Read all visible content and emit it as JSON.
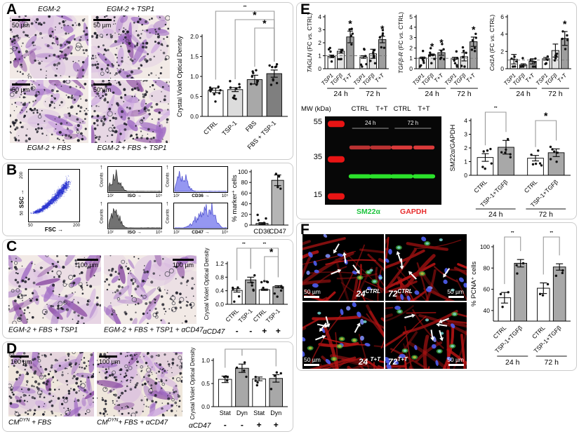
{
  "figure": {
    "bg": "#ffffff",
    "panel_border": "#cbcbcb"
  },
  "panelA": {
    "label": "A",
    "scale_label": "50 µm",
    "top_captions": [
      "EGM-2",
      "EGM-2 + TSP1"
    ],
    "bottom_captions": [
      "EGM-2 + FBS",
      "EGM-2 + FBS + TSP1"
    ]
  },
  "panelB": {
    "label": "B",
    "scatter": {
      "ylabel": "SSC",
      "xlabel": "FSC",
      "arrow_right": "→",
      "y_tick_top": "200",
      "y_tick_bottom": "50",
      "x_tick_left": "50",
      "x_tick_right": "200"
    },
    "hist_ylabel": "Counts",
    "up_arrow": "↑",
    "hist_xtick_left": "10²",
    "hist_xtick_right": "10⁵",
    "histograms": [
      {
        "xlabel": "ISO"
      },
      {
        "xlabel": "CD36"
      },
      {
        "xlabel": "ISO"
      },
      {
        "xlabel": "CD47"
      }
    ]
  },
  "panelC": {
    "label": "C",
    "scale_label": "100 µm",
    "captions": [
      {
        "pre": "EGM-2 + FBS + TSP1"
      },
      {
        "pre": "EGM-2 + FBS + TSP1 + αCD47"
      }
    ]
  },
  "panelD": {
    "label": "D",
    "scale_label": "100 µm",
    "captions": [
      {
        "pre": "CM",
        "sup": "DYN",
        "post": " + FBS"
      },
      {
        "pre": "CM",
        "sup": "DYN",
        "post": "+ FBS + αCD47"
      }
    ]
  },
  "panelE": {
    "label": "E",
    "blot": {
      "mw_header": "MW (kDa)",
      "lanes": [
        "CTRL",
        "T+T",
        "CTRL",
        "T+T"
      ],
      "mw_marks": [
        "55",
        "35",
        "15"
      ],
      "time_labels": [
        "24 h",
        "72 h"
      ],
      "legend": [
        {
          "text": "SM22α",
          "color": "#1ec43e"
        },
        {
          "text": "GAPDH",
          "color": "#e82e2e"
        }
      ],
      "colors": {
        "bg": "#070707",
        "marker": "#e81414",
        "gapdh": "#d93a3a",
        "sm22": "#2be22b"
      }
    }
  },
  "panelF": {
    "label": "F",
    "scale_label": "50 µm",
    "img_labels": [
      {
        "pre": "24",
        "sup": "CTRL"
      },
      {
        "pre": "72",
        "sup": "CTRL"
      },
      {
        "pre": "24 ",
        "sup": "T+T"
      },
      {
        "pre": "72",
        "sup": "T+T"
      }
    ]
  },
  "art": {
    "micro": {
      "bg": "#f2eae6",
      "bg_d": "#efe7dc",
      "cell": "#a06cc4",
      "cell_dark": "#86449f",
      "cell_light": "#cda7e0",
      "dot": "#20202a",
      "ring": "#4a4a55"
    },
    "fluoro": {
      "bg": "#000000",
      "fiber": "#b81414",
      "fiber2": "#8f0f0f",
      "nucleus": "#4f5ef2",
      "nucleus_light": "#7d8cf5",
      "pcna": "#43b33f",
      "cyan": "#79d8d2",
      "yellow": "#c8b93a",
      "arrow": "#ffffff"
    },
    "flow": {
      "dot": "#2a35d0",
      "iso": "#636363",
      "pos": "#8a8cf0",
      "pos_edge": "#4a4ccc"
    }
  },
  "chart_data": [
    {
      "id": "c_a",
      "type": "bar",
      "ylabel": [
        {
          "t": "Crystal Violet Optical Density"
        }
      ],
      "categories": [
        "CTRL",
        "TSP-1",
        "FBS",
        "FBS + TSP-1"
      ],
      "values": [
        0.65,
        0.67,
        0.92,
        1.07
      ],
      "errors": [
        0.06,
        0.05,
        0.11,
        0.09
      ],
      "bar_colors": [
        "#ffffff",
        "#dcdcdc",
        "#a8a8a8",
        "#7f7f7f"
      ],
      "ylim": [
        0,
        2.0
      ],
      "yticks": [
        0,
        0.5,
        1,
        1.5,
        2
      ],
      "ytick_labels": [
        "0.0",
        "0.5",
        "1.0",
        "1.5",
        "2.0"
      ],
      "rotate_xlabels": true,
      "points_per_bar": 9,
      "brackets": [
        {
          "from": 0,
          "to": 3,
          "level": 0,
          "label": "*"
        },
        {
          "from": 1,
          "to": 3,
          "level": 1,
          "label": "*"
        },
        {
          "from": 2,
          "to": 3,
          "level": 2,
          "label": "*"
        }
      ],
      "margins": {
        "l": 38,
        "r": 6,
        "t": 44,
        "b": 58,
        "ylfs": 9,
        "xlfs": 9,
        "bracket_y0": 8
      }
    },
    {
      "id": "c_b",
      "type": "bar",
      "ylabel": [
        {
          "t": "% marker⁺ cells"
        }
      ],
      "categories": [
        "CD36",
        "CD47"
      ],
      "values": [
        3,
        84
      ],
      "errors": [
        1.5,
        10
      ],
      "bar_colors": [
        "#b5b5b5",
        "#b5b5b5"
      ],
      "ylim": [
        0,
        100
      ],
      "yticks": [
        0,
        20,
        40,
        60,
        80,
        100
      ],
      "ytick_labels": [
        "0",
        "20",
        "40",
        "60",
        "80",
        "100"
      ],
      "rotate_xlabels": false,
      "points_per_bar": 4,
      "margins": {
        "l": 30,
        "r": 3,
        "t": 10,
        "b": 14,
        "ylfs": 9.5,
        "xlfs": 9.5
      }
    },
    {
      "id": "c_c",
      "type": "bar",
      "ylabel": [
        {
          "t": "Crystal Violet Optical Density"
        }
      ],
      "categories": [
        "CTRL",
        "TSP-1",
        "CTRL",
        "TSP-1"
      ],
      "values": [
        0.41,
        0.72,
        0.43,
        0.52
      ],
      "errors": [
        0.05,
        0.08,
        0.02,
        0.03
      ],
      "bar_colors": [
        "#ffffff",
        "#a8a8a8",
        "#ffffff",
        "#a8a8a8"
      ],
      "ylim": [
        0,
        1.2
      ],
      "yticks": [
        0,
        0.4,
        0.8,
        1.2
      ],
      "ytick_labels": [
        "0.0",
        "0.4",
        "0.8",
        "1.2"
      ],
      "rotate_xlabels": true,
      "points_per_bar": 5,
      "brackets": [
        {
          "from": 0,
          "to": 1,
          "level": 0,
          "label": "*"
        },
        {
          "from": 1,
          "to": 3,
          "level": 0,
          "label": "*"
        },
        {
          "from": 2,
          "to": 3,
          "level": 1,
          "label": "*"
        }
      ],
      "sub_row": {
        "label": "αCD47",
        "values": [
          "-",
          "-",
          "+",
          "+"
        ]
      },
      "margins": {
        "l": 36,
        "r": 4,
        "t": 30,
        "b": 46,
        "ylfs": 8,
        "xlfs": 8.5,
        "bracket_y0": 8
      }
    },
    {
      "id": "c_d",
      "type": "bar",
      "ylabel": [
        {
          "t": "Crystal Violet Optical Density"
        }
      ],
      "categories": [
        "Stat",
        "Dyn",
        "Stat",
        "Dyn"
      ],
      "values": [
        0.59,
        0.83,
        0.6,
        0.61
      ],
      "errors": [
        0.07,
        0.09,
        0.04,
        0.08
      ],
      "bar_colors": [
        "#ffffff",
        "#a8a8a8",
        "#ffffff",
        "#a8a8a8"
      ],
      "ylim": [
        0,
        1.0
      ],
      "yticks": [
        0,
        0.5,
        1
      ],
      "ytick_labels": [
        "0.0",
        "0.5",
        "1.0"
      ],
      "rotate_xlabels": false,
      "points_per_bar": 4,
      "brackets": [
        {
          "from": 0,
          "to": 1,
          "level": 0,
          "label": "*"
        },
        {
          "from": 1,
          "to": 3,
          "level": 0,
          "label": "*"
        }
      ],
      "sub_row": {
        "label": "αCD47",
        "values": [
          "-",
          "-",
          "+",
          "+"
        ]
      },
      "margins": {
        "l": 36,
        "r": 4,
        "t": 22,
        "b": 34,
        "ylfs": 8,
        "xlfs": 9,
        "bracket_y0": 6
      }
    },
    {
      "id": "c_tagln",
      "type": "bar",
      "ylabel": [
        {
          "t": "TAGLN",
          "i": true
        },
        {
          "t": " (FC "
        },
        {
          "t": "vs.",
          "i": true
        },
        {
          "t": " CTRL)"
        }
      ],
      "categories": [
        "TSP1",
        "TGFβ",
        "T+T",
        "TSP1",
        "TGFβ",
        "T+T"
      ],
      "values": [
        0.95,
        1.35,
        2.45,
        0.9,
        1.15,
        2.25
      ],
      "errors": [
        0.1,
        0.15,
        0.45,
        0.1,
        0.35,
        0.25
      ],
      "bar_colors": [
        "#ffffff",
        "#e2e2e2",
        "#9e9e9e",
        "#ffffff",
        "#e2e2e2",
        "#9e9e9e"
      ],
      "ylim": [
        0,
        4
      ],
      "yticks": [
        0,
        1,
        2,
        3,
        4
      ],
      "ytick_labels": [
        "0",
        "1",
        "2",
        "3",
        "4"
      ],
      "rotate_xlabels": true,
      "xlabels_italic": true,
      "dashed_y": 1,
      "bar_stars": [
        2,
        5
      ],
      "gap_after": [
        2
      ],
      "groups": [
        {
          "label": "24 h",
          "from": 0,
          "to": 2
        },
        {
          "label": "72 h",
          "from": 3,
          "to": 5
        }
      ],
      "points_per_bar": 6,
      "margins": {
        "l": 28,
        "r": 3,
        "t": 14,
        "b": 50,
        "ylfs": 8.5,
        "xlfs": 8,
        "group_line_dy": 28,
        "group_label_dy": 39
      }
    },
    {
      "id": "c_tgfbr",
      "type": "bar",
      "ylabel": [
        {
          "t": "TGFβ-R",
          "i": true
        },
        {
          "t": " (FC "
        },
        {
          "t": "vs.",
          "i": true
        },
        {
          "t": " CTRL)"
        }
      ],
      "categories": [
        "TSP1",
        "TGFβ",
        "T+T",
        "TSP1",
        "TGFβ",
        "T+T"
      ],
      "values": [
        1.05,
        1.35,
        1.55,
        1.0,
        1.15,
        2.6
      ],
      "errors": [
        0.08,
        0.07,
        0.25,
        0.1,
        0.4,
        0.45
      ],
      "bar_colors": [
        "#ffffff",
        "#e2e2e2",
        "#9e9e9e",
        "#ffffff",
        "#e2e2e2",
        "#9e9e9e"
      ],
      "ylim": [
        0,
        5
      ],
      "yticks": [
        0,
        1,
        2,
        3,
        4,
        5
      ],
      "ytick_labels": [
        "0",
        "1",
        "2",
        "3",
        "4",
        "5"
      ],
      "rotate_xlabels": true,
      "xlabels_italic": true,
      "dashed_y": 1,
      "bar_stars": [
        1,
        2,
        5
      ],
      "gap_after": [
        2
      ],
      "groups": [
        {
          "label": "24 h",
          "from": 0,
          "to": 2
        },
        {
          "label": "72 h",
          "from": 3,
          "to": 5
        }
      ],
      "points_per_bar": 6,
      "margins": {
        "l": 28,
        "r": 3,
        "t": 14,
        "b": 50,
        "ylfs": 8.5,
        "xlfs": 8,
        "group_line_dy": 28,
        "group_label_dy": 39
      }
    },
    {
      "id": "c_col1a",
      "type": "bar",
      "ylabel": [
        {
          "t": "Col1A",
          "i": true
        },
        {
          "t": " (FC "
        },
        {
          "t": "vs.",
          "i": true
        },
        {
          "t": " CTRL)"
        }
      ],
      "categories": [
        "TSP1",
        "TGFβ",
        "T+T",
        "TSP1",
        "TGFβ",
        "T+T"
      ],
      "values": [
        1.1,
        0.45,
        0.85,
        1.15,
        2.1,
        3.5
      ],
      "errors": [
        0.55,
        0.12,
        0.3,
        0.15,
        0.75,
        0.8
      ],
      "bar_colors": [
        "#ffffff",
        "#e2e2e2",
        "#9e9e9e",
        "#ffffff",
        "#e2e2e2",
        "#9e9e9e"
      ],
      "ylim": [
        0,
        6
      ],
      "yticks": [
        0,
        2,
        4,
        6
      ],
      "ytick_labels": [
        "0",
        "2",
        "4",
        "6"
      ],
      "rotate_xlabels": true,
      "xlabels_italic": true,
      "dashed_y": 1,
      "bar_stars": [
        5
      ],
      "gap_after": [
        2
      ],
      "groups": [
        {
          "label": "24 h",
          "from": 0,
          "to": 2
        },
        {
          "label": "72 h",
          "from": 3,
          "to": 5
        }
      ],
      "points_per_bar": 5,
      "margins": {
        "l": 28,
        "r": 3,
        "t": 14,
        "b": 50,
        "ylfs": 8.5,
        "xlfs": 8,
        "group_line_dy": 28,
        "group_label_dy": 39
      }
    },
    {
      "id": "c_sm22",
      "type": "bar",
      "ylabel": [
        {
          "t": "SM22α/GAPDH"
        }
      ],
      "categories": [
        "CTRL",
        "TSP-1+TGFβ",
        "CTRL",
        "TSP-1+TGFβ"
      ],
      "values": [
        1.3,
        2.05,
        1.25,
        1.65
      ],
      "errors": [
        0.28,
        0.5,
        0.2,
        0.28
      ],
      "bar_colors": [
        "#ffffff",
        "#a8a8a8",
        "#ffffff",
        "#a8a8a8"
      ],
      "ylim": [
        0,
        4
      ],
      "yticks": [
        0,
        1,
        2,
        3,
        4
      ],
      "ytick_labels": [
        "0",
        "1",
        "2",
        "3",
        "4"
      ],
      "rotate_xlabels": true,
      "gap_after": [
        1
      ],
      "brackets": [
        {
          "from": 0,
          "to": 1,
          "level": 0,
          "label": "*"
        },
        {
          "from": 2,
          "to": 3,
          "level": 1,
          "label": "*"
        }
      ],
      "groups": [
        {
          "label": "24 h",
          "from": 0,
          "to": 1
        },
        {
          "label": "72 h",
          "from": 2,
          "to": 3
        }
      ],
      "points_per_bar": 6,
      "margins": {
        "l": 32,
        "r": 6,
        "t": 20,
        "b": 60,
        "ylfs": 9.5,
        "xlfs": 8.5,
        "group_line_dy": 48,
        "group_label_dy": 59,
        "bracket_y0": 8
      }
    },
    {
      "id": "c_pcna",
      "type": "bar",
      "ylabel": [
        {
          "t": "% PCNA⁺ cells"
        }
      ],
      "categories": [
        "CTRL",
        "TSP-1+TGFβ",
        "CTRL",
        "TSP-1+TGFβ"
      ],
      "values": [
        52,
        84.5,
        61,
        81
      ],
      "errors": [
        5,
        3.5,
        5,
        3
      ],
      "bar_colors": [
        "#ffffff",
        "#a8a8a8",
        "#ffffff",
        "#a8a8a8"
      ],
      "ylim": [
        30,
        100
      ],
      "yticks": [
        40,
        60,
        80,
        100
      ],
      "ytick_labels": [
        "40",
        "60",
        "80",
        "100"
      ],
      "rotate_xlabels": true,
      "gap_after": [
        1
      ],
      "brackets": [
        {
          "from": 0,
          "to": 1,
          "level": 0,
          "label": "*"
        },
        {
          "from": 2,
          "to": 3,
          "level": 0,
          "label": "*"
        }
      ],
      "groups": [
        {
          "label": "24  h",
          "from": 0,
          "to": 1
        },
        {
          "label": "72 h",
          "from": 2,
          "to": 3
        }
      ],
      "points_per_bar": 3,
      "margins": {
        "l": 34,
        "r": 6,
        "t": 22,
        "b": 66,
        "ylfs": 9.5,
        "xlfs": 8.5,
        "group_line_dy": 50,
        "group_label_dy": 62,
        "bracket_y0": 8
      }
    }
  ]
}
